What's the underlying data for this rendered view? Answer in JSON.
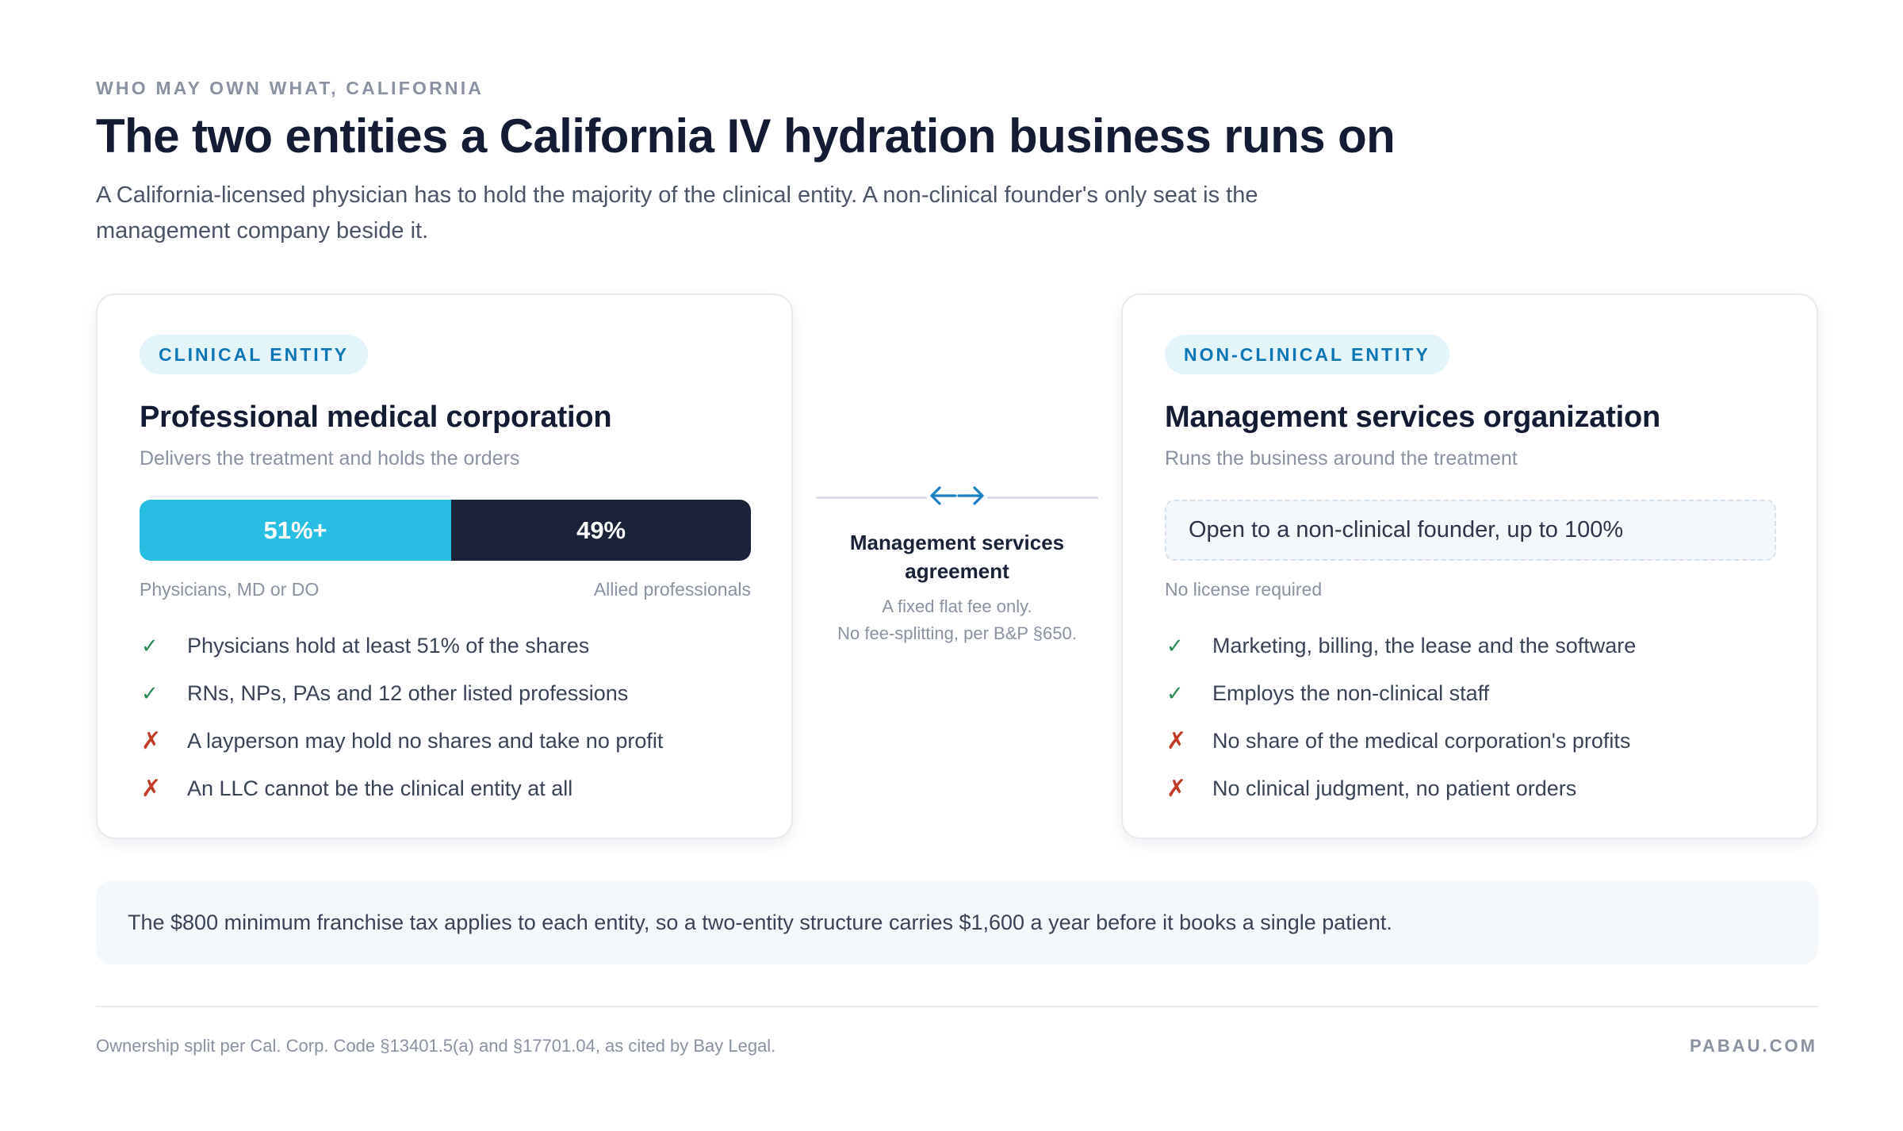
{
  "header": {
    "eyebrow": "WHO MAY OWN WHAT, CALIFORNIA",
    "title": "The two entities a California IV hydration business runs on",
    "subtitle": "A California-licensed physician has to hold the majority of the clinical entity. A non-clinical founder's only seat is the management company beside it."
  },
  "clinical": {
    "tag": "CLINICAL ENTITY",
    "title": "Professional medical corporation",
    "subtitle": "Delivers the treatment and holds the orders",
    "split": {
      "physicians_label": "51%+",
      "physicians_share": 0.51,
      "allied_label": "49%",
      "allied_share": 0.49,
      "left_caption": "Physicians, MD or DO",
      "right_caption": "Allied professionals"
    },
    "items": [
      {
        "mark": "✓",
        "type": "ok",
        "text": "Physicians hold at least 51% of the shares"
      },
      {
        "mark": "✓",
        "type": "ok",
        "text": "RNs, NPs, PAs and 12 other listed professions"
      },
      {
        "mark": "✗",
        "type": "no",
        "text": "A layperson may hold no shares and take no profit"
      },
      {
        "mark": "✗",
        "type": "no",
        "text": "An LLC cannot be the clinical entity at all"
      }
    ]
  },
  "link": {
    "icon": "double-arrow-icon",
    "title": "Management services agreement",
    "note_1": "A fixed flat fee only.",
    "note_2": "No fee-splitting, per B&P §650."
  },
  "nonclinical": {
    "tag": "NON-CLINICAL ENTITY",
    "title": "Management services organization",
    "subtitle": "Runs the business around the treatment",
    "open_text": "Open to a non-clinical founder, up to 100%",
    "caption": "No license required",
    "items": [
      {
        "mark": "✓",
        "type": "ok",
        "text": "Marketing, billing, the lease and the software"
      },
      {
        "mark": "✓",
        "type": "ok",
        "text": "Employs the non-clinical staff"
      },
      {
        "mark": "✗",
        "type": "no",
        "text": "No share of the medical corporation's profits"
      },
      {
        "mark": "✗",
        "type": "no",
        "text": "No clinical judgment, no patient orders"
      }
    ]
  },
  "callout": "The $800 minimum franchise tax applies to each entity, so a two-entity structure carries $1,600 a year before it books a single patient.",
  "footer": {
    "source": "Ownership split per Cal. Corp. Code §13401.5(a) and §17701.04, as cited by Bay Legal.",
    "brand": "PABAU.COM"
  },
  "colors": {
    "accent": "#28bde3",
    "dark": "#1b2338",
    "ok": "#2a8a55",
    "no": "#c03a28",
    "tag_bg": "#e3f4fb",
    "tag_text": "#0b76b5"
  }
}
